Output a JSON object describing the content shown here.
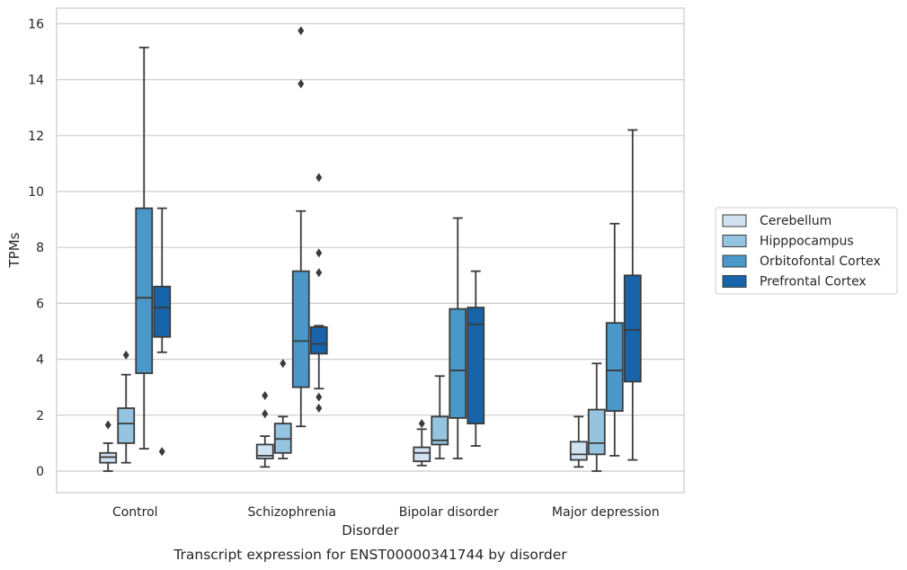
{
  "chart_data": {
    "type": "box",
    "title": "",
    "caption": "Transcript expression for ENST00000341744 by disorder",
    "xlabel": "Disorder",
    "ylabel": "TPMs",
    "ylim": [
      -0.75,
      16.55
    ],
    "yticks": [
      0,
      2,
      4,
      6,
      8,
      10,
      12,
      14,
      16
    ],
    "grid": "horizontal",
    "legend_position": "right",
    "categories": [
      "Control",
      "Schizophrenia",
      "Bipolar disorder",
      "Major depression"
    ],
    "series": [
      {
        "name": "Cerebellum",
        "color": "#d0e1f2",
        "boxes": [
          {
            "whisker_low": 0.0,
            "q1": 0.3,
            "median": 0.5,
            "q3": 0.65,
            "whisker_high": 1.0,
            "outliers": [
              1.65
            ]
          },
          {
            "whisker_low": 0.15,
            "q1": 0.45,
            "median": 0.55,
            "q3": 0.95,
            "whisker_high": 1.25,
            "outliers": [
              2.05,
              2.7
            ]
          },
          {
            "whisker_low": 0.2,
            "q1": 0.35,
            "median": 0.65,
            "q3": 0.85,
            "whisker_high": 1.5,
            "outliers": [
              1.7
            ]
          },
          {
            "whisker_low": 0.15,
            "q1": 0.4,
            "median": 0.6,
            "q3": 1.05,
            "whisker_high": 1.95,
            "outliers": []
          }
        ]
      },
      {
        "name": "Hipppocampus",
        "color": "#94c4df",
        "boxes": [
          {
            "whisker_low": 0.3,
            "q1": 1.0,
            "median": 1.7,
            "q3": 2.25,
            "whisker_high": 3.45,
            "outliers": [
              4.15
            ]
          },
          {
            "whisker_low": 0.45,
            "q1": 0.65,
            "median": 1.15,
            "q3": 1.7,
            "whisker_high": 1.95,
            "outliers": [
              3.85
            ]
          },
          {
            "whisker_low": 0.45,
            "q1": 0.95,
            "median": 1.1,
            "q3": 1.95,
            "whisker_high": 3.4,
            "outliers": []
          },
          {
            "whisker_low": 0.0,
            "q1": 0.6,
            "median": 1.0,
            "q3": 2.2,
            "whisker_high": 3.85,
            "outliers": []
          }
        ]
      },
      {
        "name": "Orbitofontal Cortex",
        "color": "#4a98c9",
        "boxes": [
          {
            "whisker_low": 0.8,
            "q1": 3.5,
            "median": 6.2,
            "q3": 9.4,
            "whisker_high": 15.15,
            "outliers": []
          },
          {
            "whisker_low": 1.6,
            "q1": 3.0,
            "median": 4.65,
            "q3": 7.15,
            "whisker_high": 9.3,
            "outliers": [
              13.85,
              15.75
            ]
          },
          {
            "whisker_low": 0.45,
            "q1": 1.9,
            "median": 3.6,
            "q3": 5.8,
            "whisker_high": 9.05,
            "outliers": []
          },
          {
            "whisker_low": 0.55,
            "q1": 2.15,
            "median": 3.6,
            "q3": 5.3,
            "whisker_high": 8.85,
            "outliers": []
          }
        ]
      },
      {
        "name": "Prefrontal Cortex",
        "color": "#1764ab",
        "boxes": [
          {
            "whisker_low": 4.25,
            "q1": 4.8,
            "median": 5.85,
            "q3": 6.6,
            "whisker_high": 9.4,
            "outliers": [
              0.7
            ]
          },
          {
            "whisker_low": 2.95,
            "q1": 4.2,
            "median": 4.55,
            "q3": 5.15,
            "whisker_high": 5.2,
            "outliers": [
              2.25,
              2.65,
              7.1,
              7.8,
              10.5
            ]
          },
          {
            "whisker_low": 0.9,
            "q1": 1.7,
            "median": 5.25,
            "q3": 5.85,
            "whisker_high": 7.15,
            "outliers": []
          },
          {
            "whisker_low": 0.4,
            "q1": 3.2,
            "median": 5.05,
            "q3": 7.0,
            "whisker_high": 12.2,
            "outliers": []
          }
        ]
      }
    ]
  }
}
